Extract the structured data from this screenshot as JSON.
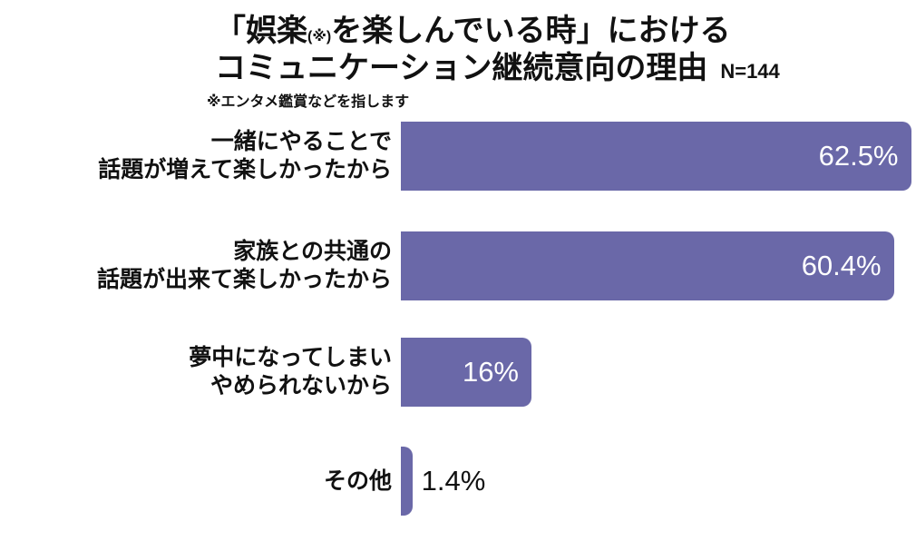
{
  "header": {
    "title_line1": {
      "prefix": "「娯楽",
      "note": "(※)",
      "suffix": "を楽しんでいる時」における"
    },
    "title_line2": "コミュニケーション継続意向の理由",
    "sample_size": "N=144",
    "footnote": "※エンタメ鑑賞などを指します"
  },
  "chart_data": {
    "type": "bar",
    "orientation": "horizontal",
    "title": "「娯楽(※)を楽しんでいる時」におけるコミュニケーション継続意向の理由",
    "sample_size": "N=144",
    "footnote": "※エンタメ鑑賞などを指します",
    "value_unit": "%",
    "xlim": [
      0,
      65
    ],
    "grid": false,
    "legend": false,
    "bar_color": "#6A68A8",
    "value_color_inside": "#FFFFFF",
    "value_color_outside": "#111111",
    "categories": [
      "一緒にやることで話題が増えて楽しかったから",
      "家族との共通の話題が出来て楽しかったから",
      "夢中になってしまいやめられないから",
      "その他"
    ],
    "values": [
      62.5,
      60.4,
      16,
      1.4
    ],
    "rows": [
      {
        "label_lines": [
          "一緒にやることで",
          "話題が増えて楽しかったから"
        ],
        "value": 62.5,
        "value_label": "62.5%"
      },
      {
        "label_lines": [
          "家族との共通の",
          "話題が出来て楽しかったから"
        ],
        "value": 60.4,
        "value_label": "60.4%"
      },
      {
        "label_lines": [
          "夢中になってしまい",
          "やめられないから"
        ],
        "value": 16,
        "value_label": "16%"
      },
      {
        "label_lines": [
          "その他"
        ],
        "value": 1.4,
        "value_label": "1.4%"
      }
    ]
  }
}
